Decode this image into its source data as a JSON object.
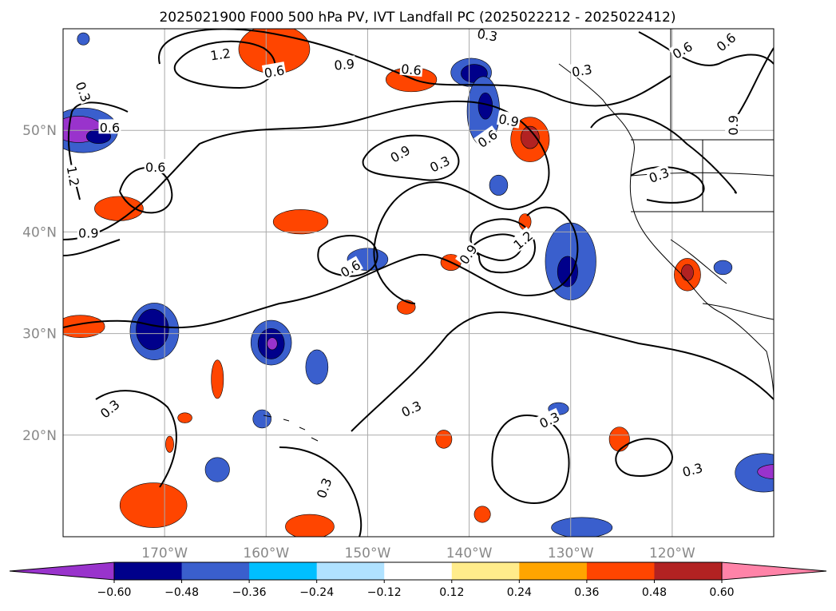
{
  "title": "2025021900 F000 500 hPa PV, IVT Landfall PC (2025022212 - 2025022412)",
  "map": {
    "lon_range": [
      -180,
      -110
    ],
    "lat_range": [
      10,
      60
    ],
    "lon_ticks": [
      {
        "value": -170,
        "label": "170°W"
      },
      {
        "value": -160,
        "label": "160°W"
      },
      {
        "value": -150,
        "label": "150°W"
      },
      {
        "value": -140,
        "label": "140°W"
      },
      {
        "value": -130,
        "label": "130°W"
      },
      {
        "value": -120,
        "label": "120°W"
      }
    ],
    "lat_ticks": [
      {
        "value": 20,
        "label": "20°N"
      },
      {
        "value": 30,
        "label": "30°N"
      },
      {
        "value": 40,
        "label": "40°N"
      },
      {
        "value": 50,
        "label": "50°N"
      }
    ],
    "gridlines": true
  },
  "colorbar": {
    "extend": "both",
    "colors": [
      "#9933cc",
      "#00008b",
      "#3a5fcd",
      "#00bfff",
      "#b0e2ff",
      "#ffffff",
      "#ffec8b",
      "#ffa500",
      "#ff4500",
      "#b22222",
      "#ff83a8"
    ],
    "ticks": [
      "−0.60",
      "−0.48",
      "−0.36",
      "−0.24",
      "−0.12",
      "0.12",
      "0.24",
      "0.36",
      "0.48",
      "0.60"
    ]
  },
  "contour_labels": [
    {
      "text": "1.2",
      "lon": -164.5,
      "lat": 57.5,
      "rot": -8
    },
    {
      "text": "0.9",
      "lon": -152.3,
      "lat": 56.5,
      "rot": -5
    },
    {
      "text": "0.6",
      "lon": -159.2,
      "lat": 55.8,
      "rot": -10
    },
    {
      "text": "0.6",
      "lon": -145.7,
      "lat": 56.0,
      "rot": 5
    },
    {
      "text": "0.3",
      "lon": -138.2,
      "lat": 59.4,
      "rot": 10
    },
    {
      "text": "0.3",
      "lon": -128.9,
      "lat": 55.9,
      "rot": -10
    },
    {
      "text": "0.6",
      "lon": -119.0,
      "lat": 57.9,
      "rot": -30
    },
    {
      "text": "0.6",
      "lon": -114.7,
      "lat": 58.7,
      "rot": -40
    },
    {
      "text": "0.3",
      "lon": -178.0,
      "lat": 53.8,
      "rot": 70
    },
    {
      "text": "0.6",
      "lon": -175.4,
      "lat": 50.3,
      "rot": 0
    },
    {
      "text": "1.2",
      "lon": -179.0,
      "lat": 45.5,
      "rot": 80
    },
    {
      "text": "0.6",
      "lon": -170.9,
      "lat": 46.4,
      "rot": 0
    },
    {
      "text": "0.9",
      "lon": -177.5,
      "lat": 39.9,
      "rot": 0
    },
    {
      "text": "0.9",
      "lon": -136.1,
      "lat": 51.0,
      "rot": 10
    },
    {
      "text": "0.6",
      "lon": -138.2,
      "lat": 49.2,
      "rot": -35
    },
    {
      "text": "0.9",
      "lon": -146.8,
      "lat": 47.7,
      "rot": -30
    },
    {
      "text": "0.3",
      "lon": -142.9,
      "lat": 46.7,
      "rot": -25
    },
    {
      "text": "0.3",
      "lon": -121.3,
      "lat": 45.6,
      "rot": -20
    },
    {
      "text": "0.9",
      "lon": -114.0,
      "lat": 50.5,
      "rot": -90
    },
    {
      "text": "1.2",
      "lon": -134.7,
      "lat": 39.2,
      "rot": -40
    },
    {
      "text": "0.9",
      "lon": -140.1,
      "lat": 37.8,
      "rot": -55
    },
    {
      "text": "0.6",
      "lon": -151.7,
      "lat": 36.4,
      "rot": -30
    },
    {
      "text": "0.3",
      "lon": -175.4,
      "lat": 22.6,
      "rot": -40
    },
    {
      "text": "0.3",
      "lon": -145.7,
      "lat": 22.6,
      "rot": -25
    },
    {
      "text": "0.3",
      "lon": -132.1,
      "lat": 21.5,
      "rot": -25
    },
    {
      "text": "0.3",
      "lon": -118.0,
      "lat": 16.6,
      "rot": -15
    },
    {
      "text": "0.3",
      "lon": -154.3,
      "lat": 14.8,
      "rot": -70
    }
  ],
  "shaded_areas": [
    {
      "lon": -178.0,
      "lat": 50.0,
      "rx": 3.4,
      "ry": 2.2,
      "fill": "#3a5fcd"
    },
    {
      "lon": -178.5,
      "lat": 50.1,
      "rx": 2.4,
      "ry": 1.3,
      "fill": "#9933cc"
    },
    {
      "lon": -176.5,
      "lat": 49.4,
      "rx": 1.2,
      "ry": 0.7,
      "fill": "#00008b"
    },
    {
      "lon": -171.0,
      "lat": 30.2,
      "rx": 2.4,
      "ry": 2.8,
      "fill": "#3a5fcd"
    },
    {
      "lon": -171.2,
      "lat": 30.4,
      "rx": 1.6,
      "ry": 2.0,
      "fill": "#00008b"
    },
    {
      "lon": -159.5,
      "lat": 29.1,
      "rx": 2.0,
      "ry": 2.2,
      "fill": "#3a5fcd"
    },
    {
      "lon": -159.5,
      "lat": 29.0,
      "rx": 1.3,
      "ry": 1.5,
      "fill": "#00008b"
    },
    {
      "lon": -159.4,
      "lat": 29.0,
      "rx": 0.5,
      "ry": 0.6,
      "fill": "#9933cc"
    },
    {
      "lon": -139.8,
      "lat": 55.7,
      "rx": 2.0,
      "ry": 1.4,
      "fill": "#3a5fcd"
    },
    {
      "lon": -139.5,
      "lat": 55.6,
      "rx": 1.3,
      "ry": 0.9,
      "fill": "#00008b"
    },
    {
      "lon": -138.6,
      "lat": 51.9,
      "rx": 1.6,
      "ry": 3.4,
      "fill": "#3a5fcd"
    },
    {
      "lon": -138.4,
      "lat": 52.4,
      "rx": 0.7,
      "ry": 1.3,
      "fill": "#00008b"
    },
    {
      "lon": -150.0,
      "lat": 37.3,
      "rx": 2.0,
      "ry": 1.1,
      "fill": "#3a5fcd"
    },
    {
      "lon": -137.1,
      "lat": 44.6,
      "rx": 0.9,
      "ry": 1.0,
      "fill": "#3a5fcd"
    },
    {
      "lon": -130.0,
      "lat": 37.1,
      "rx": 2.5,
      "ry": 3.8,
      "fill": "#3a5fcd"
    },
    {
      "lon": -130.3,
      "lat": 36.1,
      "rx": 1.0,
      "ry": 1.5,
      "fill": "#00008b"
    },
    {
      "lon": -155.0,
      "lat": 26.7,
      "rx": 1.1,
      "ry": 1.7,
      "fill": "#3a5fcd"
    },
    {
      "lon": -164.8,
      "lat": 16.6,
      "rx": 1.2,
      "ry": 1.2,
      "fill": "#3a5fcd"
    },
    {
      "lon": -160.4,
      "lat": 21.6,
      "rx": 0.9,
      "ry": 0.9,
      "fill": "#3a5fcd"
    },
    {
      "lon": -128.9,
      "lat": 10.9,
      "rx": 3.0,
      "ry": 1.0,
      "fill": "#3a5fcd"
    },
    {
      "lon": -111.0,
      "lat": 16.3,
      "rx": 2.8,
      "ry": 1.9,
      "fill": "#3a5fcd"
    },
    {
      "lon": -110.0,
      "lat": 16.4,
      "rx": 1.6,
      "ry": 0.7,
      "fill": "#9933cc"
    },
    {
      "lon": -131.2,
      "lat": 22.6,
      "rx": 1.0,
      "ry": 0.6,
      "fill": "#3a5fcd"
    },
    {
      "lon": -115.0,
      "lat": 36.5,
      "rx": 0.9,
      "ry": 0.7,
      "fill": "#3a5fcd"
    },
    {
      "lon": -178.0,
      "lat": 59.0,
      "rx": 0.6,
      "ry": 0.6,
      "fill": "#3a5fcd"
    },
    {
      "lon": -159.2,
      "lat": 58.0,
      "rx": 3.5,
      "ry": 2.4,
      "fill": "#ff4500"
    },
    {
      "lon": -145.7,
      "lat": 55.0,
      "rx": 2.5,
      "ry": 1.2,
      "fill": "#ff4500"
    },
    {
      "lon": -134.0,
      "lat": 49.1,
      "rx": 1.9,
      "ry": 2.2,
      "fill": "#ff4500"
    },
    {
      "lon": -134.0,
      "lat": 49.3,
      "rx": 0.9,
      "ry": 1.1,
      "fill": "#b22222"
    },
    {
      "lon": -174.5,
      "lat": 42.3,
      "rx": 2.4,
      "ry": 1.2,
      "fill": "#ff4500"
    },
    {
      "lon": -156.6,
      "lat": 41.0,
      "rx": 2.7,
      "ry": 1.2,
      "fill": "#ff4500"
    },
    {
      "lon": -178.3,
      "lat": 30.7,
      "rx": 2.4,
      "ry": 1.1,
      "fill": "#ff4500"
    },
    {
      "lon": -118.5,
      "lat": 35.8,
      "rx": 1.3,
      "ry": 1.6,
      "fill": "#ff4500"
    },
    {
      "lon": -118.5,
      "lat": 36.0,
      "rx": 0.6,
      "ry": 0.8,
      "fill": "#b22222"
    },
    {
      "lon": -171.1,
      "lat": 13.1,
      "rx": 3.3,
      "ry": 2.2,
      "fill": "#ff4500"
    },
    {
      "lon": -155.7,
      "lat": 11.0,
      "rx": 2.4,
      "ry": 1.2,
      "fill": "#ff4500"
    },
    {
      "lon": -125.2,
      "lat": 19.6,
      "rx": 1.0,
      "ry": 1.2,
      "fill": "#ff4500"
    },
    {
      "lon": -138.7,
      "lat": 12.2,
      "rx": 0.8,
      "ry": 0.8,
      "fill": "#ff4500"
    },
    {
      "lon": -164.8,
      "lat": 25.5,
      "rx": 0.6,
      "ry": 1.9,
      "fill": "#ff4500"
    },
    {
      "lon": -141.8,
      "lat": 37.0,
      "rx": 1.0,
      "ry": 0.8,
      "fill": "#ff4500"
    },
    {
      "lon": -134.5,
      "lat": 41.0,
      "rx": 0.6,
      "ry": 0.8,
      "fill": "#ff4500"
    },
    {
      "lon": -146.2,
      "lat": 32.6,
      "rx": 0.9,
      "ry": 0.7,
      "fill": "#ff4500"
    },
    {
      "lon": -142.5,
      "lat": 19.6,
      "rx": 0.8,
      "ry": 0.9,
      "fill": "#ff4500"
    },
    {
      "lon": -170.6,
      "lat": 46.3,
      "rx": 0.5,
      "ry": 0.4,
      "fill": "#ff4500"
    },
    {
      "lon": -168.0,
      "lat": 21.7,
      "rx": 0.7,
      "ry": 0.5,
      "fill": "#ff4500"
    },
    {
      "lon": -169.5,
      "lat": 19.1,
      "rx": 0.4,
      "ry": 0.8,
      "fill": "#ff4500"
    }
  ]
}
